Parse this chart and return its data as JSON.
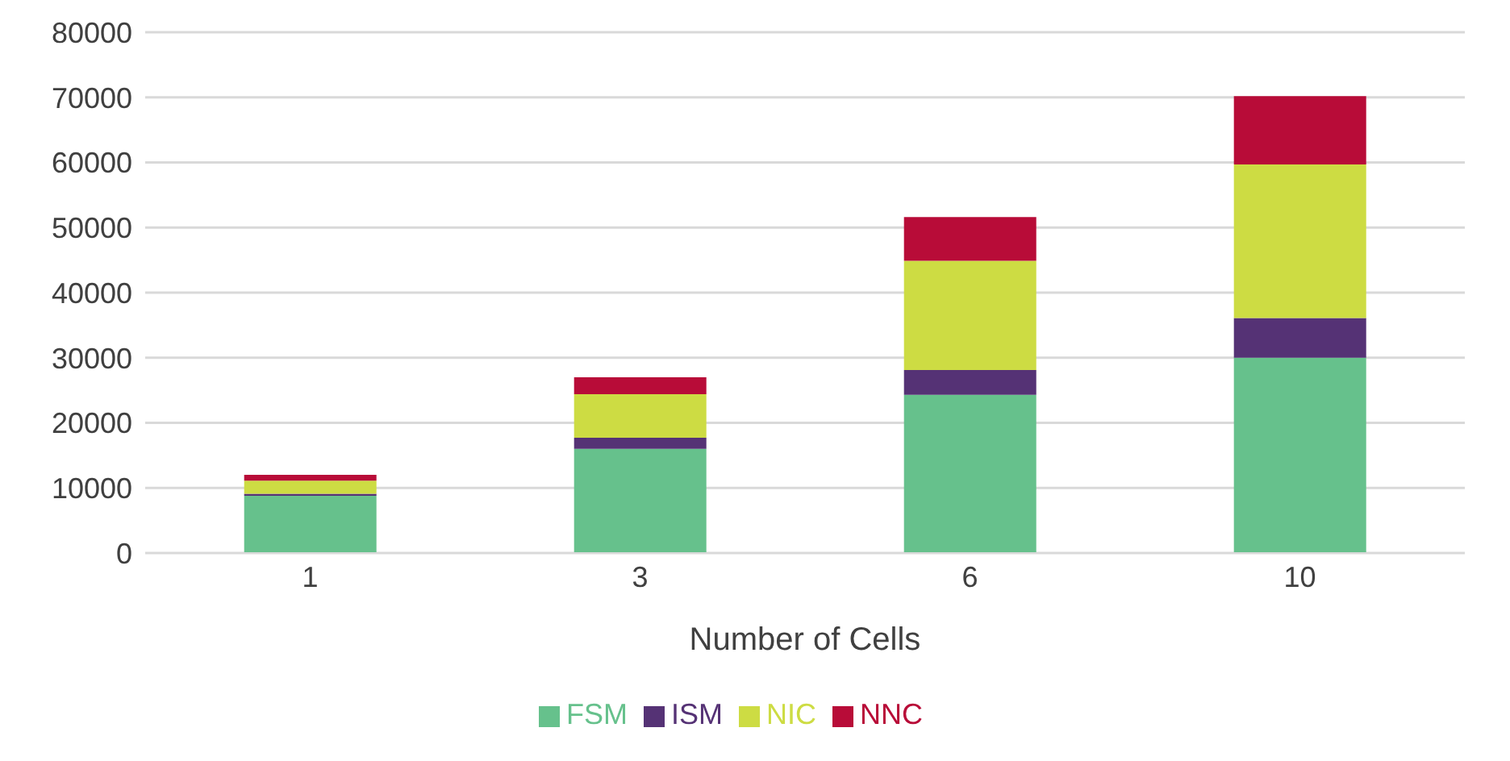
{
  "chart_data": {
    "type": "bar",
    "stacked": true,
    "xlabel": "Number of Cells",
    "categories": [
      "1",
      "3",
      "6",
      "10"
    ],
    "series": [
      {
        "name": "FSM",
        "color": "#66c18c",
        "values": [
          8800,
          16000,
          24300,
          30000
        ]
      },
      {
        "name": "ISM",
        "color": "#553275",
        "values": [
          300,
          1700,
          3800,
          6100
        ]
      },
      {
        "name": "NIC",
        "color": "#cddc43",
        "values": [
          2000,
          6700,
          16800,
          23600
        ]
      },
      {
        "name": "NNC",
        "color": "#b80c38",
        "values": [
          900,
          2600,
          6700,
          10500
        ]
      }
    ],
    "ylim": [
      0,
      80000
    ],
    "yticks": [
      0,
      10000,
      20000,
      30000,
      40000,
      50000,
      60000,
      70000,
      80000
    ],
    "grid": "y",
    "legend": "bottom"
  }
}
